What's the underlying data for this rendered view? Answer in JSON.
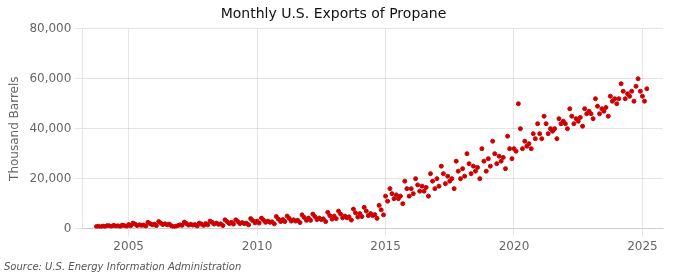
{
  "chart_data": {
    "type": "scatter",
    "title": "Monthly U.S. Exports of Propane",
    "ylabel": "Thousand Barrels",
    "source": "Source: U.S. Energy Information Administration",
    "color": "#cc0000",
    "grid": true,
    "xlim": [
      2003.2,
      2025.8
    ],
    "xticks": [
      2005,
      2010,
      2015,
      2020,
      2025
    ],
    "ylim": [
      0,
      80000
    ],
    "yticks": [
      0,
      {
        "value": 20000,
        "label": "20,000"
      },
      {
        "value": 40000,
        "label": "40,000"
      },
      {
        "value": 60000,
        "label": "60,000"
      },
      {
        "value": 80000,
        "label": "80,000"
      }
    ],
    "x": [
      2003.75,
      2003.83,
      2003.92,
      2004.0,
      2004.08,
      2004.17,
      2004.25,
      2004.33,
      2004.42,
      2004.5,
      2004.58,
      2004.67,
      2004.75,
      2004.83,
      2004.92,
      2005.0,
      2005.08,
      2005.17,
      2005.25,
      2005.33,
      2005.42,
      2005.5,
      2005.58,
      2005.67,
      2005.75,
      2005.83,
      2005.92,
      2006.0,
      2006.08,
      2006.17,
      2006.25,
      2006.33,
      2006.42,
      2006.5,
      2006.58,
      2006.67,
      2006.75,
      2006.83,
      2006.92,
      2007.0,
      2007.08,
      2007.17,
      2007.25,
      2007.33,
      2007.42,
      2007.5,
      2007.58,
      2007.67,
      2007.75,
      2007.83,
      2007.92,
      2008.0,
      2008.08,
      2008.17,
      2008.25,
      2008.33,
      2008.42,
      2008.5,
      2008.58,
      2008.67,
      2008.75,
      2008.83,
      2008.92,
      2009.0,
      2009.08,
      2009.17,
      2009.25,
      2009.33,
      2009.42,
      2009.5,
      2009.58,
      2009.67,
      2009.75,
      2009.83,
      2009.92,
      2010.0,
      2010.08,
      2010.17,
      2010.25,
      2010.33,
      2010.42,
      2010.5,
      2010.58,
      2010.67,
      2010.75,
      2010.83,
      2010.92,
      2011.0,
      2011.08,
      2011.17,
      2011.25,
      2011.33,
      2011.42,
      2011.5,
      2011.58,
      2011.67,
      2011.75,
      2011.83,
      2011.92,
      2012.0,
      2012.08,
      2012.17,
      2012.25,
      2012.33,
      2012.42,
      2012.5,
      2012.58,
      2012.67,
      2012.75,
      2012.83,
      2012.92,
      2013.0,
      2013.08,
      2013.17,
      2013.25,
      2013.33,
      2013.42,
      2013.5,
      2013.58,
      2013.67,
      2013.75,
      2013.83,
      2013.92,
      2014.0,
      2014.08,
      2014.17,
      2014.25,
      2014.33,
      2014.42,
      2014.5,
      2014.58,
      2014.67,
      2014.75,
      2014.83,
      2014.92,
      2015.0,
      2015.08,
      2015.17,
      2015.25,
      2015.33,
      2015.42,
      2015.5,
      2015.58,
      2015.67,
      2015.75,
      2015.83,
      2015.92,
      2016.0,
      2016.08,
      2016.17,
      2016.25,
      2016.33,
      2016.42,
      2016.5,
      2016.58,
      2016.67,
      2016.75,
      2016.83,
      2016.92,
      2017.0,
      2017.08,
      2017.17,
      2017.25,
      2017.33,
      2017.42,
      2017.5,
      2017.58,
      2017.67,
      2017.75,
      2017.83,
      2017.92,
      2018.0,
      2018.08,
      2018.17,
      2018.25,
      2018.33,
      2018.42,
      2018.5,
      2018.58,
      2018.67,
      2018.75,
      2018.83,
      2018.92,
      2019.0,
      2019.08,
      2019.17,
      2019.25,
      2019.33,
      2019.42,
      2019.5,
      2019.58,
      2019.67,
      2019.75,
      2019.83,
      2019.92,
      2020.0,
      2020.08,
      2020.17,
      2020.25,
      2020.33,
      2020.42,
      2020.5,
      2020.58,
      2020.67,
      2020.75,
      2020.83,
      2020.92,
      2021.0,
      2021.08,
      2021.17,
      2021.25,
      2021.33,
      2021.42,
      2021.5,
      2021.58,
      2021.67,
      2021.75,
      2021.83,
      2021.92,
      2022.0,
      2022.08,
      2022.17,
      2022.25,
      2022.33,
      2022.42,
      2022.5,
      2022.58,
      2022.67,
      2022.75,
      2022.83,
      2022.92,
      2023.0,
      2023.08,
      2023.17,
      2023.25,
      2023.33,
      2023.42,
      2023.5,
      2023.58,
      2023.67,
      2023.75,
      2023.83,
      2023.92,
      2024.0,
      2024.08,
      2024.17,
      2024.25,
      2024.33,
      2024.42,
      2024.5,
      2024.58,
      2024.67,
      2024.75,
      2024.83,
      2024.92,
      2025.0,
      2025.08,
      2025.17
    ],
    "values": [
      800,
      900,
      700,
      1000,
      800,
      1200,
      1100,
      900,
      1300,
      1000,
      1100,
      800,
      1400,
      1200,
      900,
      1600,
      1100,
      2200,
      1800,
      1200,
      1500,
      1300,
      1400,
      1000,
      2500,
      2000,
      1500,
      1800,
      1200,
      2800,
      2200,
      1600,
      1900,
      1500,
      1800,
      1100,
      700,
      900,
      1200,
      1500,
      1300,
      2600,
      2000,
      1400,
      1700,
      1400,
      1600,
      1000,
      2200,
      1800,
      1300,
      2000,
      1500,
      3000,
      2500,
      1800,
      2200,
      1700,
      1900,
      1200,
      3500,
      2800,
      2000,
      2500,
      1800,
      3500,
      2800,
      2000,
      2400,
      2000,
      2200,
      1500,
      4000,
      3200,
      2300,
      3000,
      2200,
      4200,
      3400,
      2500,
      3000,
      2500,
      2700,
      1900,
      4800,
      3800,
      2800,
      3600,
      2800,
      5000,
      4100,
      3000,
      3500,
      3000,
      3300,
      2400,
      5500,
      4500,
      3300,
      4200,
      3300,
      5800,
      4800,
      3600,
      4200,
      3600,
      3900,
      2800,
      6500,
      5200,
      3800,
      5000,
      4000,
      7000,
      5800,
      4300,
      5000,
      4300,
      4700,
      3400,
      7800,
      6300,
      4600,
      6000,
      4800,
      8500,
      7000,
      5200,
      6000,
      5200,
      5600,
      4100,
      9300,
      7500,
      5500,
      13000,
      11000,
      16000,
      14000,
      12000,
      13500,
      12000,
      13000,
      10000,
      19000,
      16000,
      13000,
      16000,
      14000,
      20000,
      17500,
      15000,
      17000,
      15000,
      16500,
      13000,
      22000,
      19000,
      16000,
      20000,
      17000,
      25000,
      22000,
      18000,
      21000,
      19000,
      20000,
      16000,
      27000,
      23000,
      20000,
      24000,
      21000,
      30000,
      26000,
      22000,
      25000,
      23000,
      24500,
      20000,
      32000,
      27000,
      23000,
      28000,
      25000,
      35000,
      30000,
      26000,
      29000,
      27000,
      28500,
      24000,
      37000,
      32000,
      28000,
      32000,
      31000,
      50000,
      40000,
      32000,
      35000,
      33000,
      34000,
      32000,
      38000,
      36000,
      42000,
      38000,
      36000,
      45000,
      42000,
      38000,
      40000,
      39000,
      40000,
      36000,
      44000,
      42000,
      43000,
      42000,
      40000,
      48000,
      45000,
      42000,
      44000,
      43000,
      44500,
      41000,
      48000,
      46000,
      47000,
      46000,
      44000,
      52000,
      49000,
      46000,
      48000,
      47000,
      48500,
      45000,
      53000,
      51000,
      52000,
      50000,
      52000,
      58000,
      55000,
      52000,
      54000,
      53000,
      55000,
      51000,
      57000,
      60000,
      55000,
      53000,
      51000,
      56000
    ]
  }
}
